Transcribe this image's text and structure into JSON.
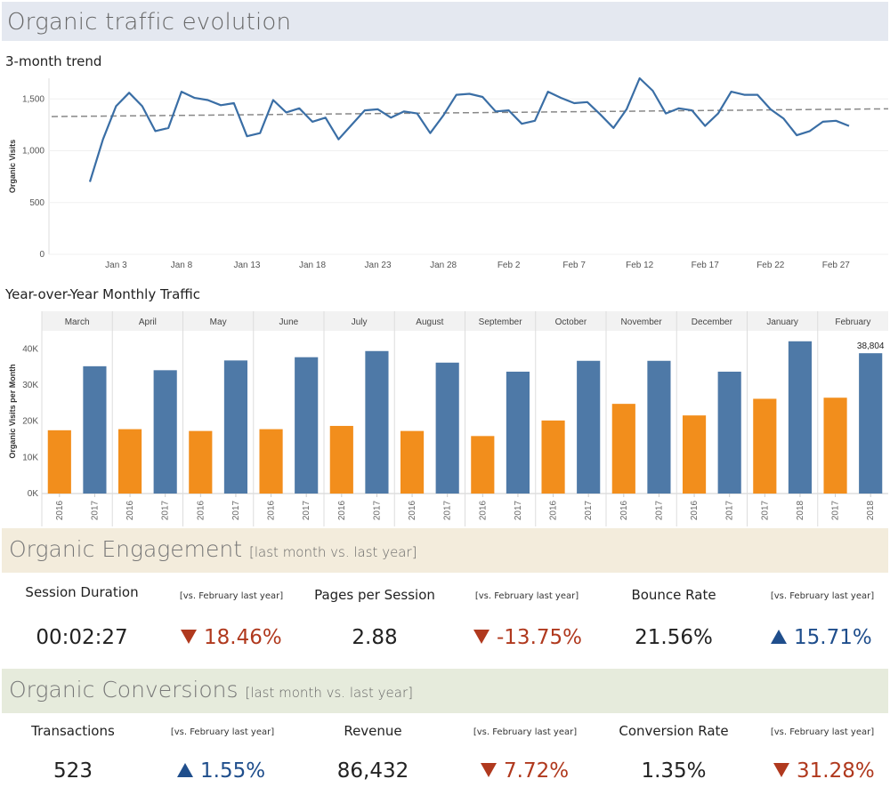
{
  "header": {
    "title": "Organic traffic evolution"
  },
  "trend": {
    "subtitle": "3-month trend"
  },
  "yoy": {
    "subtitle": "Year-over-Year Monthly Traffic"
  },
  "chart_data": [
    {
      "type": "line",
      "title": "3-month trend",
      "ylabel": "Organic Visits",
      "ylim": [
        0,
        1700
      ],
      "yticks": [
        0,
        500,
        1000,
        1500
      ],
      "ytick_labels": [
        "0",
        "500",
        "1,000",
        "1,500"
      ],
      "x_tick_labels": [
        "Jan 3",
        "Jan 8",
        "Jan 13",
        "Jan 18",
        "Jan 23",
        "Jan 28",
        "Feb 2",
        "Feb 7",
        "Feb 12",
        "Feb 17",
        "Feb 22",
        "Feb 27"
      ],
      "x_start_day": 1,
      "trendline": {
        "style": "dashed",
        "start": 1330,
        "end": 1405
      },
      "series": [
        {
          "values": [
            700,
            1110,
            1430,
            1560,
            1430,
            1190,
            1220,
            1570,
            1510,
            1490,
            1440,
            1460,
            1140,
            1170,
            1490,
            1370,
            1410,
            1280,
            1320,
            1110,
            1250,
            1390,
            1400,
            1320,
            1380,
            1360,
            1170,
            1340,
            1540,
            1550,
            1520,
            1380,
            1390,
            1260,
            1290,
            1570,
            1510,
            1460,
            1470,
            1350,
            1220,
            1400,
            1700,
            1580,
            1360,
            1410,
            1390,
            1240,
            1360,
            1570,
            1540,
            1540,
            1400,
            1310,
            1150,
            1190,
            1280,
            1290,
            1240
          ]
        }
      ],
      "grid": true
    },
    {
      "type": "bar",
      "title": "Year-over-Year Monthly Traffic",
      "ylabel": "Organic Visits per Month",
      "ylim": [
        0,
        45000
      ],
      "yticks": [
        0,
        10000,
        20000,
        30000,
        40000
      ],
      "ytick_labels": [
        "0K",
        "10K",
        "20K",
        "30K",
        "40K"
      ],
      "colors": {
        "prior": "#f28e1c",
        "current": "#4e79a7"
      },
      "months": [
        {
          "name": "March",
          "years": [
            "2016",
            "2017"
          ],
          "values": [
            17500,
            35200
          ]
        },
        {
          "name": "April",
          "years": [
            "2016",
            "2017"
          ],
          "values": [
            17800,
            34100
          ]
        },
        {
          "name": "May",
          "years": [
            "2016",
            "2017"
          ],
          "values": [
            17300,
            36800
          ]
        },
        {
          "name": "June",
          "years": [
            "2016",
            "2017"
          ],
          "values": [
            17800,
            37700
          ]
        },
        {
          "name": "July",
          "years": [
            "2016",
            "2017"
          ],
          "values": [
            18700,
            39400
          ]
        },
        {
          "name": "August",
          "years": [
            "2016",
            "2017"
          ],
          "values": [
            17300,
            36200
          ]
        },
        {
          "name": "September",
          "years": [
            "2016",
            "2017"
          ],
          "values": [
            15900,
            33700
          ]
        },
        {
          "name": "October",
          "years": [
            "2016",
            "2017"
          ],
          "values": [
            20200,
            36700
          ]
        },
        {
          "name": "November",
          "years": [
            "2016",
            "2017"
          ],
          "values": [
            24800,
            36700
          ]
        },
        {
          "name": "December",
          "years": [
            "2016",
            "2017"
          ],
          "values": [
            21600,
            33700
          ]
        },
        {
          "name": "January",
          "years": [
            "2017",
            "2018"
          ],
          "values": [
            26200,
            42100
          ]
        },
        {
          "name": "February",
          "years": [
            "2017",
            "2018"
          ],
          "values": [
            26500,
            38804
          ]
        }
      ],
      "annotation": "38,804"
    }
  ],
  "engagement": {
    "title": "Organic Engagement",
    "subtitle": "[last month vs. last year]",
    "kpis": [
      {
        "label": "Session Duration",
        "value": "00:02:27",
        "vs": "[vs. February last year]",
        "change": "18.46%",
        "direction": "down"
      },
      {
        "label": "Pages per Session",
        "value": "2.88",
        "vs": "[vs. February last year]",
        "change": "-13.75%",
        "direction": "down"
      },
      {
        "label": "Bounce Rate",
        "value": "21.56%",
        "vs": "[vs. February last year]",
        "change": "15.71%",
        "direction": "up"
      }
    ]
  },
  "conversions": {
    "title": "Organic Conversions",
    "subtitle": "[last month vs. last year]",
    "kpis": [
      {
        "label": "Transactions",
        "value": "523",
        "vs": "[vs. February last year]",
        "change": "1.55%",
        "direction": "up"
      },
      {
        "label": "Revenue",
        "value": "86,432",
        "vs": "[vs. February last year]",
        "change": "7.72%",
        "direction": "down"
      },
      {
        "label": "Conversion Rate",
        "value": "1.35%",
        "vs": "[vs. February last year]",
        "change": "31.28%",
        "direction": "down"
      }
    ]
  },
  "colors": {
    "header_band": "#e4e8f0",
    "engagement_band": "#f3ecdc",
    "conversions_band": "#e6ebdc",
    "line": "#3a6ea5",
    "down": "#b0391e",
    "up": "#1f4e8c"
  }
}
